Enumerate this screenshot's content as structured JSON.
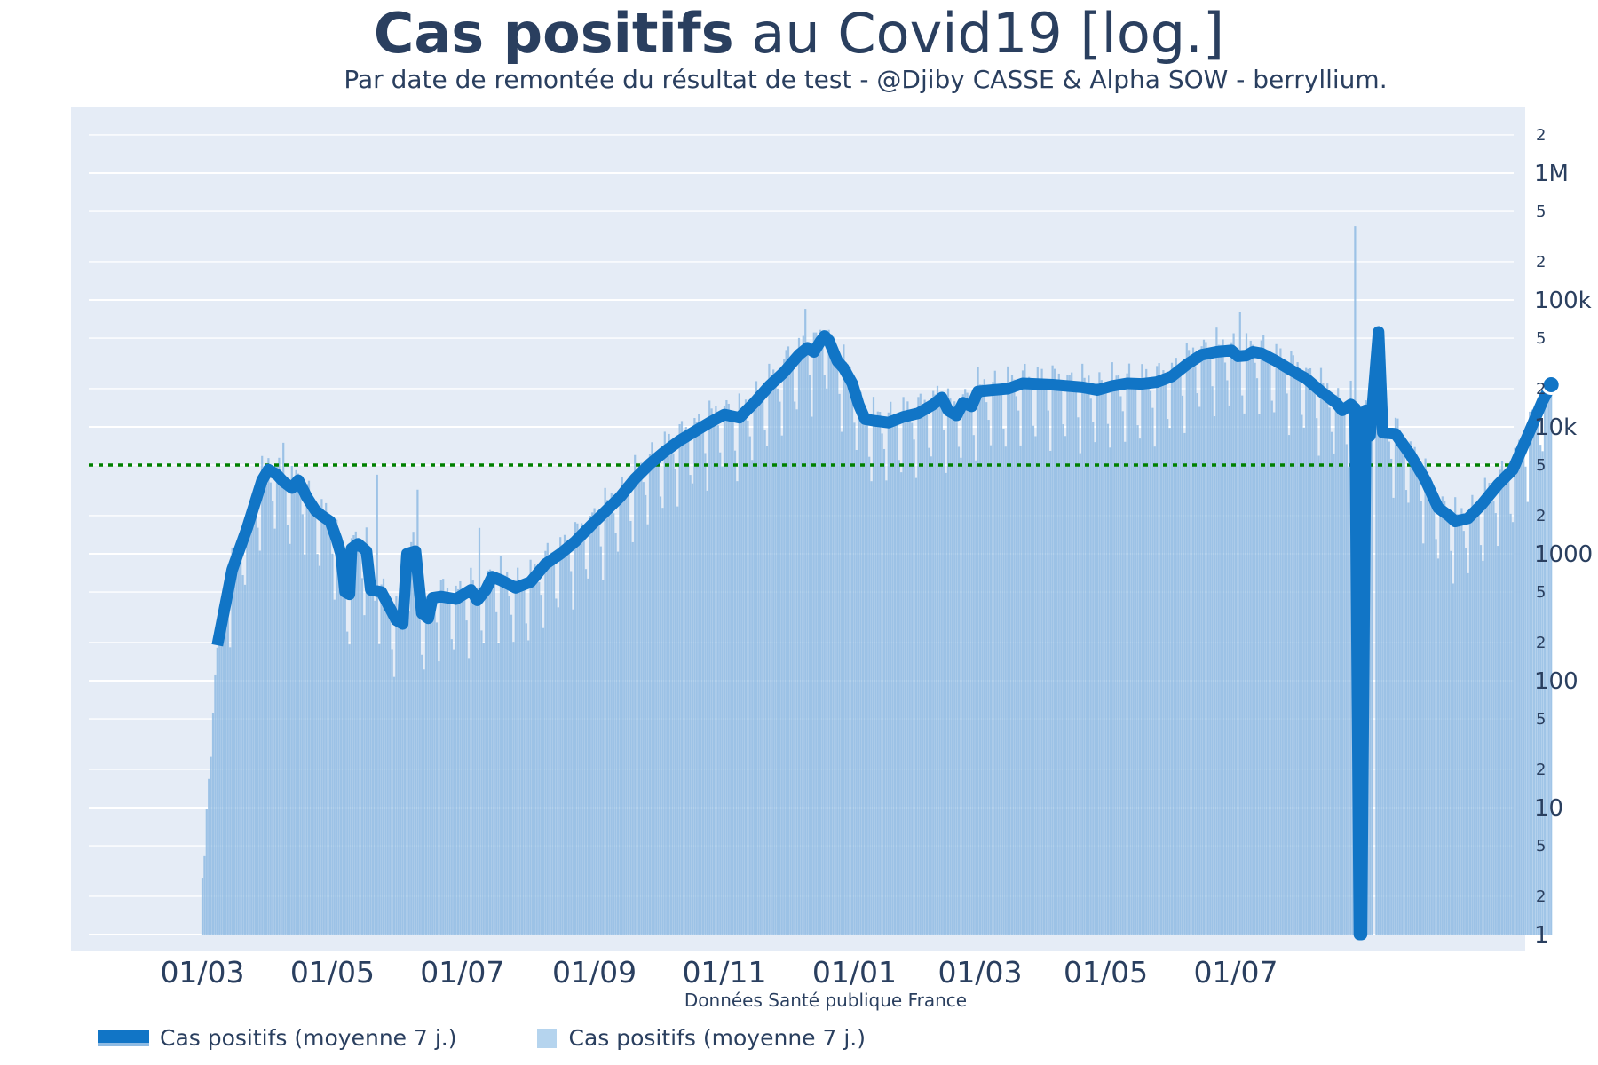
{
  "title": {
    "bold": "Cas positifs",
    "rest": " au Covid19 [log.]"
  },
  "subtitle": "Par date de remontée du résultat de test - @Djiby CASSE & Alpha SOW - berryllium.",
  "source": "Données Santé publique France",
  "legend": [
    {
      "label": "Cas positifs (moyenne 7 j.)",
      "kind": "line"
    },
    {
      "label": "Cas positifs (moyenne 7 j.)",
      "kind": "bar"
    }
  ],
  "colors": {
    "plot_bg": "#e5ecf6",
    "line": "#1175c6",
    "bars": "#8fbbe3",
    "threshold": "#008000",
    "grid": "#ffffff"
  },
  "chart_data": {
    "type": "bar+line",
    "yscale": "log",
    "ylim": [
      1,
      3000000
    ],
    "x_month_ticks": [
      "01/03",
      "01/05",
      "01/07",
      "01/09",
      "01/11",
      "01/01",
      "01/03",
      "01/05",
      "01/07"
    ],
    "y_major_ticks": [
      {
        "value": 1,
        "label": "1"
      },
      {
        "value": 10,
        "label": "10"
      },
      {
        "value": 100,
        "label": "100"
      },
      {
        "value": 1000,
        "label": "1000"
      },
      {
        "value": 10000,
        "label": "10k"
      },
      {
        "value": 100000,
        "label": "100k"
      },
      {
        "value": 1000000,
        "label": "1M"
      }
    ],
    "y_minor_ticks": [
      {
        "value": 2,
        "label": "2"
      },
      {
        "value": 5,
        "label": "5"
      },
      {
        "value": 20,
        "label": "2"
      },
      {
        "value": 50,
        "label": "5"
      },
      {
        "value": 200,
        "label": "2"
      },
      {
        "value": 500,
        "label": "5"
      },
      {
        "value": 2000,
        "label": "2"
      },
      {
        "value": 5000,
        "label": "5"
      },
      {
        "value": 20000,
        "label": "2"
      },
      {
        "value": 50000,
        "label": "5"
      },
      {
        "value": 200000,
        "label": "2"
      },
      {
        "value": 500000,
        "label": "5"
      },
      {
        "value": 2000000,
        "label": "2"
      }
    ],
    "threshold": 5000,
    "x_range_days": [
      -21,
      525
    ],
    "series": [
      {
        "name": "Cas positifs (moyenne 7 j.)",
        "kind": "line",
        "points": [
          [
            7,
            190
          ],
          [
            14,
            750
          ],
          [
            21,
            1600
          ],
          [
            28,
            3800
          ],
          [
            31,
            4600
          ],
          [
            35,
            4200
          ],
          [
            38,
            3700
          ],
          [
            42,
            3300
          ],
          [
            45,
            3800
          ],
          [
            49,
            2800
          ],
          [
            53,
            2200
          ],
          [
            56,
            2000
          ],
          [
            60,
            1800
          ],
          [
            63,
            1300
          ],
          [
            65,
            1000
          ],
          [
            67,
            500
          ],
          [
            69,
            480
          ],
          [
            70,
            1100
          ],
          [
            73,
            1200
          ],
          [
            77,
            1050
          ],
          [
            79,
            520
          ],
          [
            84,
            500
          ],
          [
            91,
            300
          ],
          [
            94,
            280
          ],
          [
            96,
            1000
          ],
          [
            100,
            1050
          ],
          [
            103,
            340
          ],
          [
            106,
            310
          ],
          [
            108,
            450
          ],
          [
            112,
            460
          ],
          [
            119,
            440
          ],
          [
            126,
            520
          ],
          [
            129,
            430
          ],
          [
            133,
            520
          ],
          [
            136,
            660
          ],
          [
            140,
            620
          ],
          [
            147,
            540
          ],
          [
            154,
            600
          ],
          [
            161,
            830
          ],
          [
            168,
            1000
          ],
          [
            175,
            1250
          ],
          [
            182,
            1650
          ],
          [
            189,
            2150
          ],
          [
            196,
            2800
          ],
          [
            203,
            3900
          ],
          [
            210,
            5100
          ],
          [
            217,
            6400
          ],
          [
            224,
            7800
          ],
          [
            231,
            9200
          ],
          [
            238,
            10800
          ],
          [
            245,
            12500
          ],
          [
            252,
            11800
          ],
          [
            259,
            15500
          ],
          [
            266,
            21000
          ],
          [
            273,
            27000
          ],
          [
            280,
            37000
          ],
          [
            284,
            42000
          ],
          [
            287,
            39000
          ],
          [
            290,
            47000
          ],
          [
            292,
            52000
          ],
          [
            294,
            48000
          ],
          [
            298,
            33000
          ],
          [
            301,
            29000
          ],
          [
            305,
            22000
          ],
          [
            308,
            15000
          ],
          [
            311,
            11500
          ],
          [
            315,
            11200
          ],
          [
            322,
            10800
          ],
          [
            329,
            12000
          ],
          [
            336,
            12800
          ],
          [
            343,
            15000
          ],
          [
            347,
            17000
          ],
          [
            350,
            13500
          ],
          [
            354,
            12300
          ],
          [
            357,
            15500
          ],
          [
            361,
            14500
          ],
          [
            364,
            19000
          ],
          [
            371,
            19500
          ],
          [
            378,
            20000
          ],
          [
            385,
            22000
          ],
          [
            399,
            21500
          ],
          [
            413,
            20500
          ],
          [
            420,
            19500
          ],
          [
            427,
            21000
          ],
          [
            434,
            22000
          ],
          [
            441,
            21800
          ],
          [
            448,
            22500
          ],
          [
            455,
            25000
          ],
          [
            462,
            31000
          ],
          [
            469,
            37000
          ],
          [
            476,
            39000
          ],
          [
            483,
            40000
          ],
          [
            486,
            36000
          ],
          [
            490,
            36500
          ],
          [
            493,
            39000
          ],
          [
            497,
            38000
          ],
          [
            504,
            33000
          ],
          [
            511,
            28000
          ],
          [
            518,
            24000
          ],
          [
            525,
            19000
          ],
          [
            532,
            15500
          ],
          [
            535,
            13500
          ],
          [
            539,
            15000
          ],
          [
            541,
            14000
          ],
          [
            543,
            1
          ],
          [
            544,
            1
          ],
          [
            546,
            13500
          ],
          [
            548,
            8500
          ],
          [
            552,
            56000
          ],
          [
            554,
            9000
          ],
          [
            560,
            8800
          ],
          [
            567,
            6000
          ],
          [
            574,
            3800
          ],
          [
            580,
            2300
          ],
          [
            585,
            2000
          ],
          [
            588,
            1800
          ],
          [
            594,
            1900
          ],
          [
            600,
            2400
          ],
          [
            608,
            3500
          ],
          [
            615,
            4600
          ],
          [
            622,
            8500
          ],
          [
            629,
            16000
          ],
          [
            633,
            21500
          ]
        ],
        "last_point_marker": true
      },
      {
        "name": "Cas positifs (moyenne 7 j.)",
        "kind": "bar",
        "note": "daily bars roughly follow the 7-day average with weekday variation",
        "notable_spikes": [
          [
            38,
            7500
          ],
          [
            82,
            4200
          ],
          [
            101,
            3200
          ],
          [
            130,
            1600
          ],
          [
            275,
            43000
          ],
          [
            283,
            85000
          ],
          [
            487,
            80000
          ],
          [
            541,
            380000
          ],
          [
            550,
            1
          ],
          [
            562,
            8000
          ]
        ]
      }
    ]
  }
}
